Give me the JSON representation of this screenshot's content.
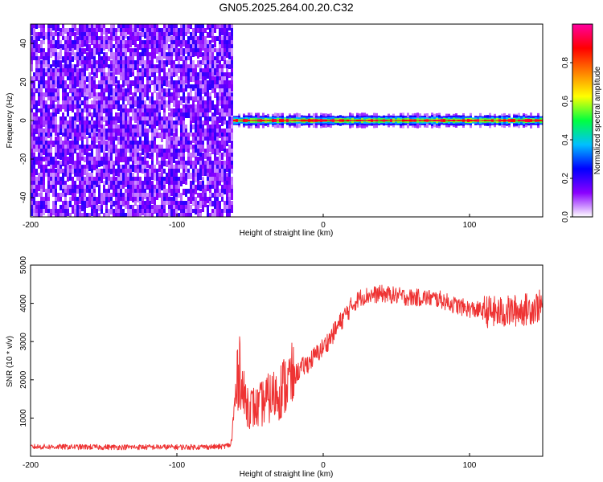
{
  "title": "GN05.2025.264.00.20.C32",
  "chart_data": [
    {
      "type": "heatmap",
      "xlabel": "Height of straight line (km)",
      "ylabel": "Frequency (Hz)",
      "xlim": [
        -200,
        150
      ],
      "ylim": [
        -50,
        50
      ],
      "x_ticks": [
        -200,
        -100,
        0,
        100
      ],
      "y_ticks": [
        -40,
        -20,
        0,
        20,
        40
      ],
      "grid": false,
      "noise_region_x": [
        -200,
        -62
      ],
      "signal_band_frequency_hz": 0,
      "colorbar": {
        "label": "Normalized spectral amplitude",
        "range": [
          0.0,
          1.0
        ],
        "ticks": [
          0.0,
          0.2,
          0.4,
          0.6,
          0.8
        ],
        "tick_labels": [
          "0.0",
          "0.2",
          "0.4",
          "0.6",
          "0.8"
        ],
        "colormap": [
          "#ffffff",
          "#8a00ff",
          "#0000ff",
          "#00c0ff",
          "#00ff40",
          "#ffff00",
          "#ff8000",
          "#ff0000",
          "#ff00a0"
        ]
      }
    },
    {
      "type": "line",
      "xlabel": "Height of straight line (km)",
      "ylabel": "SNR (10 * v/v)",
      "xlim": [
        -200,
        150
      ],
      "ylim": [
        0,
        5000
      ],
      "x_ticks": [
        -200,
        -100,
        0,
        100
      ],
      "y_ticks": [
        1000,
        2000,
        3000,
        4000,
        5000
      ],
      "grid": false,
      "series": [
        {
          "color": "#ee3333",
          "x": [
            -200,
            -150,
            -100,
            -70,
            -63,
            -60,
            -57,
            -55,
            -52,
            -50,
            -45,
            -40,
            -35,
            -30,
            -25,
            -20,
            -15,
            -10,
            -5,
            0,
            5,
            10,
            15,
            20,
            25,
            30,
            40,
            50,
            60,
            70,
            80,
            90,
            100,
            110,
            120,
            130,
            140,
            150
          ],
          "y": [
            250,
            240,
            240,
            250,
            300,
            1500,
            2500,
            1600,
            1400,
            1300,
            1250,
            1450,
            1550,
            1700,
            1900,
            2100,
            2300,
            2450,
            2650,
            2850,
            3100,
            3400,
            3700,
            3950,
            4150,
            4200,
            4250,
            4200,
            4150,
            4150,
            4100,
            3950,
            3850,
            3800,
            3750,
            3800,
            3850,
            3950
          ]
        }
      ]
    }
  ]
}
